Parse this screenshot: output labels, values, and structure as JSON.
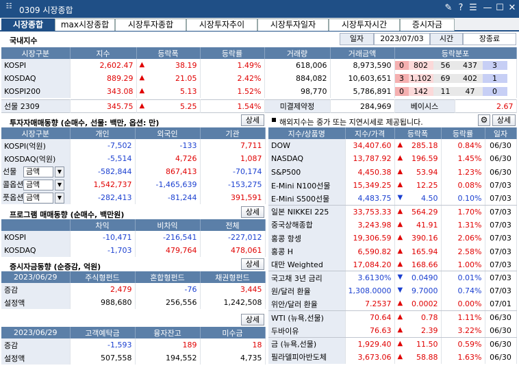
{
  "window": {
    "code": "0309",
    "title": "시장종합"
  },
  "tabs": [
    "시장종합",
    "max시장종합",
    "시장투자종합",
    "시장투자추이",
    "시장투자일자",
    "시장투자시간",
    "증시자금"
  ],
  "domestic": {
    "title": "국내지수",
    "date_label": "일자",
    "date": "2023/07/03",
    "time_label": "시간",
    "time": "장종료",
    "headers": [
      "시장구분",
      "지수",
      "등락폭",
      "등락률",
      "거래량",
      "거래금액",
      "등락분포"
    ],
    "rows": [
      {
        "name": "KOSPI",
        "index": "2,602.47",
        "change": "38.19",
        "rate": "1.49%",
        "volume": "618,006",
        "amount": "8,973,590",
        "dist": [
          "0",
          "802",
          "56",
          "437",
          "3"
        ]
      },
      {
        "name": "KOSDAQ",
        "index": "889.29",
        "change": "21.05",
        "rate": "2.42%",
        "volume": "884,082",
        "amount": "10,603,651",
        "dist": [
          "3",
          "1,102",
          "69",
          "402",
          "1"
        ]
      },
      {
        "name": "KOSPI200",
        "index": "343.08",
        "change": "5.13",
        "rate": "1.52%",
        "volume": "98,770",
        "amount": "5,786,891",
        "dist": [
          "0",
          "142",
          "11",
          "47",
          "0"
        ]
      }
    ],
    "futures": {
      "name": "선물 2309",
      "index": "345.75",
      "change": "5.25",
      "rate": "1.54%",
      "oi_label": "미결제약정",
      "oi": "284,969",
      "basis_label": "베이시스",
      "basis": "2.67"
    }
  },
  "investor": {
    "title": "투자자매매동향 (순매수, 선물: 백만, 옵션: 만)",
    "detail": "상세",
    "headers": [
      "시장구분",
      "개인",
      "외국인",
      "기관"
    ],
    "rows": [
      {
        "name": "KOSPI(억원)",
        "v": [
          "-7,502",
          "-133",
          "7,711"
        ]
      },
      {
        "name": "KOSDAQ(억원)",
        "v": [
          "-5,514",
          "4,726",
          "1,087"
        ]
      },
      {
        "name": "선물",
        "sel": "금액",
        "v": [
          "-582,844",
          "867,413",
          "-70,174"
        ]
      },
      {
        "name": "콜옵션",
        "sel": "금액",
        "v": [
          "1,542,737",
          "-1,465,639",
          "-153,275"
        ]
      },
      {
        "name": "풋옵션",
        "sel": "금액",
        "v": [
          "-282,413",
          "-81,244",
          "391,591"
        ]
      }
    ]
  },
  "program": {
    "title": "프로그램 매매동향 (순매수, 백만원)",
    "detail": "상세",
    "headers": [
      "",
      "차익",
      "비차익",
      "전체"
    ],
    "rows": [
      {
        "name": "KOSPI",
        "v": [
          "-10,471",
          "-216,541",
          "-227,012"
        ]
      },
      {
        "name": "KOSDAQ",
        "v": [
          "-1,703",
          "479,764",
          "478,061"
        ]
      }
    ]
  },
  "funds": {
    "title": "증시자금동향 (순증감, 억원)",
    "detail": "상세",
    "detail2": "상세",
    "headers1": [
      "2023/06/29",
      "주식형펀드",
      "혼합형펀드",
      "채권형펀드"
    ],
    "rows1": [
      {
        "name": "증감",
        "v": [
          "2,479",
          "-76",
          "3,445"
        ]
      },
      {
        "name": "설정액",
        "v": [
          "988,680",
          "256,556",
          "1,242,508"
        ]
      }
    ],
    "headers2": [
      "2023/06/29",
      "고객예탁금",
      "융자잔고",
      "미수금"
    ],
    "rows2": [
      {
        "name": "증감",
        "v": [
          "-1,593",
          "189",
          "18"
        ]
      },
      {
        "name": "설정액",
        "v": [
          "507,558",
          "194,552",
          "4,735"
        ]
      }
    ]
  },
  "world": {
    "note": "해외지수는 중가 또는 지연시세로 제공됩니다.",
    "detail": "상세",
    "headers": [
      "지수/상품명",
      "지수/가격",
      "등락폭",
      "등락률",
      "일자"
    ],
    "rows": [
      {
        "name": "DOW",
        "price": "34,407.60",
        "dir": "up",
        "change": "285.18",
        "rate": "0.84%",
        "date": "06/30"
      },
      {
        "name": "NASDAQ",
        "price": "13,787.92",
        "dir": "up",
        "change": "196.59",
        "rate": "1.45%",
        "date": "06/30"
      },
      {
        "name": "S&P500",
        "price": "4,450.38",
        "dir": "up",
        "change": "53.94",
        "rate": "1.23%",
        "date": "06/30"
      },
      {
        "name": "E-Mini N100선물",
        "price": "15,349.25",
        "dir": "up",
        "change": "12.25",
        "rate": "0.08%",
        "date": "07/03"
      },
      {
        "name": "E-Mini S500선물",
        "price": "4,483.75",
        "dir": "dn",
        "change": "4.50",
        "rate": "0.10%",
        "date": "07/03"
      },
      {
        "name": "일본 NIKKEI 225",
        "price": "33,753.33",
        "dir": "up",
        "change": "564.29",
        "rate": "1.70%",
        "date": "07/03"
      },
      {
        "name": "중국상해종합",
        "price": "3,243.98",
        "dir": "up",
        "change": "41.91",
        "rate": "1.31%",
        "date": "07/03"
      },
      {
        "name": "홍콩 항셍",
        "price": "19,306.59",
        "dir": "up",
        "change": "390.16",
        "rate": "2.06%",
        "date": "07/03"
      },
      {
        "name": "홍콩 H",
        "price": "6,590.82",
        "dir": "up",
        "change": "165.94",
        "rate": "2.58%",
        "date": "07/03"
      },
      {
        "name": "대만 Weighted",
        "price": "17,084.20",
        "dir": "up",
        "change": "168.66",
        "rate": "1.00%",
        "date": "07/03"
      },
      {
        "name": "국고채 3년 금리",
        "price": "3.6130%",
        "dir": "dn",
        "change": "0.0490",
        "rate": "0.01%",
        "date": "07/03"
      },
      {
        "name": "원/달러 환율",
        "price": "1,308.0000",
        "dir": "dn",
        "change": "9.7000",
        "rate": "0.74%",
        "date": "07/03"
      },
      {
        "name": "위안/달러 환율",
        "price": "7.2537",
        "dir": "up",
        "change": "0.0002",
        "rate": "0.00%",
        "date": "07/01"
      },
      {
        "name": "WTI (뉴욕,선물)",
        "price": "70.64",
        "dir": "up",
        "change": "0.78",
        "rate": "1.11%",
        "date": "06/30"
      },
      {
        "name": "두바이유",
        "price": "76.63",
        "dir": "up",
        "change": "2.39",
        "rate": "3.22%",
        "date": "06/30"
      },
      {
        "name": "금 (뉴욕,선물)",
        "price": "1,929.40",
        "dir": "up",
        "change": "11.50",
        "rate": "0.59%",
        "date": "06/30"
      },
      {
        "name": "필라델피아반도체",
        "price": "3,673.06",
        "dir": "up",
        "change": "58.88",
        "rate": "1.63%",
        "date": "06/30"
      }
    ]
  }
}
